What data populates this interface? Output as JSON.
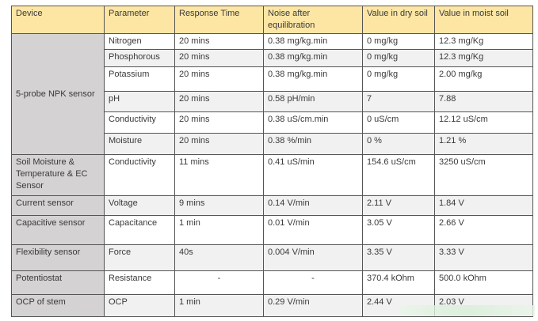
{
  "headers": [
    "Device",
    "Parameter",
    "Response Time",
    "Noise after equilibration",
    "Value in dry soil",
    "Value in moist soil"
  ],
  "groups": [
    {
      "device": "5-probe NPK sensor",
      "rows": [
        [
          "Nitrogen",
          "20 mins",
          "0.38 mg/kg.min",
          "0 mg/kg",
          "12.3 mg/Kg"
        ],
        [
          "Phosphorous",
          "20 mins",
          "0.38 mg/kg.min",
          "0 mg/kg",
          "12.3 mg/Kg"
        ],
        [
          "Potassium",
          "20 mins",
          "0.38 mg/kg.min",
          "0 mg/kg",
          "2.00 mg/kg"
        ],
        [
          "pH",
          "20 mins",
          "0.58 pH/min",
          "7",
          "7.88"
        ],
        [
          "Conductivity",
          "20 mins",
          "0.38 uS/cm.min",
          "0 uS/cm",
          "12.12 uS/cm"
        ],
        [
          "Moisture",
          "20 mins",
          "0.38 %/min",
          "0 %",
          "1.21 %"
        ]
      ]
    },
    {
      "device": "Soil Moisture & Temperature & EC Sensor",
      "rows": [
        [
          "Conductivity",
          "11 mins",
          "0.41 uS/min",
          "154.6 uS/cm",
          "3250 uS/cm"
        ]
      ]
    },
    {
      "device": "Current sensor",
      "rows": [
        [
          "Voltage",
          "9 mins",
          "0.14 V/min",
          "2.11 V",
          "1.84 V"
        ]
      ]
    },
    {
      "device": "Capacitive sensor",
      "rows": [
        [
          "Capacitance",
          "1 min",
          "0.01 V/min",
          "3.05 V",
          "2.66 V"
        ]
      ]
    },
    {
      "device": "Flexibility sensor",
      "rows": [
        [
          "Force",
          "40s",
          "0.004 V/min",
          "3.35 V",
          "3.33 V"
        ]
      ]
    },
    {
      "device": "Potentiostat",
      "rows": [
        [
          "Resistance",
          "-",
          "-",
          "370.4 kOhm",
          "500.0 kOhm"
        ]
      ]
    },
    {
      "device": "OCP of stem",
      "rows": [
        [
          "OCP",
          "1 min",
          "0.29 V/min",
          "2.44 V",
          "2.03 V"
        ]
      ]
    }
  ]
}
